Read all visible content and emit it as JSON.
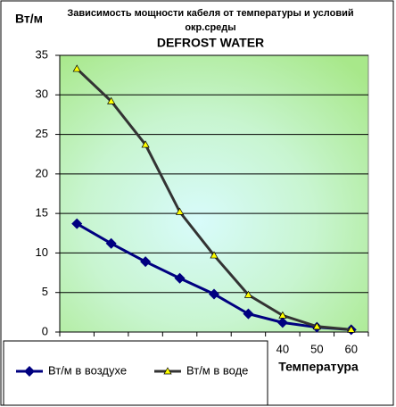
{
  "chart_data": {
    "type": "line",
    "title": [
      "Зависимость мощности кабеля от температуры и условий",
      "окр.среды"
    ],
    "subtitle": "DEFROST WATER",
    "y_label": "Вт/м",
    "x_label": "Температура",
    "categories": [
      null,
      null,
      null,
      null,
      null,
      null,
      "40",
      "50",
      "60"
    ],
    "series": [
      {
        "name": "Вт/м в воздухе",
        "color": "#000080",
        "marker": "diamond",
        "values": [
          13.7,
          11.2,
          8.9,
          6.8,
          4.8,
          2.3,
          1.2,
          0.6,
          0.3
        ]
      },
      {
        "name": "Вт/м в воде",
        "color": "#333333",
        "marker": "triangle",
        "marker_color": "#ffff00",
        "values": [
          33.3,
          29.2,
          23.7,
          15.2,
          9.7,
          4.7,
          2.1,
          0.7,
          0.3
        ]
      }
    ],
    "ylim": [
      0,
      35
    ],
    "yticks": [
      0,
      5,
      10,
      15,
      20,
      25,
      30,
      35
    ],
    "grid": true,
    "legend": "bottom"
  }
}
